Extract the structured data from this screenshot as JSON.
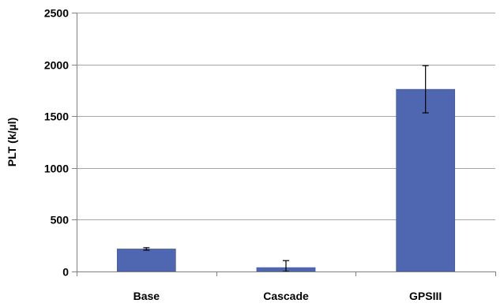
{
  "chart_data": {
    "type": "bar",
    "title": "",
    "xlabel": "",
    "ylabel": "PLT (k/µl)",
    "categories": [
      "Base",
      "Cascade",
      "GPSIII"
    ],
    "values": [
      218,
      38,
      1760
    ],
    "error": [
      12,
      67,
      228
    ],
    "ylim": [
      0,
      2500
    ],
    "yticks": [
      0,
      500,
      1000,
      1500,
      2000,
      2500
    ],
    "grid": true,
    "legend": "none",
    "colors": {
      "bar": "#4F66B0",
      "bar_edge": "#3D5196",
      "grid": "#A6A6A6",
      "axis": "#808080",
      "error_bar": "#000000"
    }
  }
}
